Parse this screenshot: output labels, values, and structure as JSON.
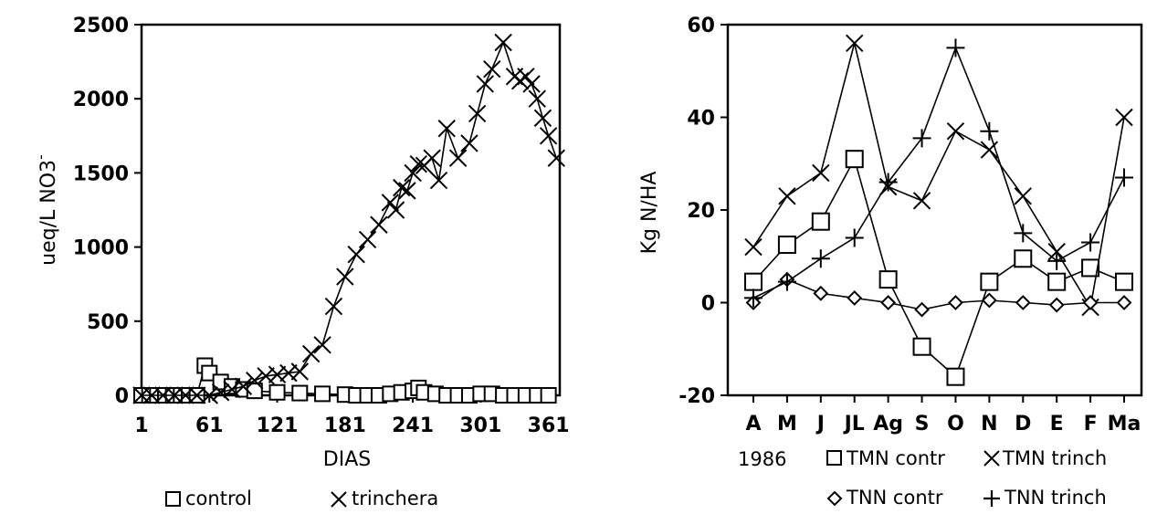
{
  "chart_data": [
    {
      "type": "line",
      "xlabel": "DIAS",
      "ylabel": "ueq/L NO3",
      "ylabel_sup": "-",
      "xlim": [
        1,
        371
      ],
      "ylim": [
        0,
        2500
      ],
      "xticks": [
        "1",
        "61",
        "121",
        "181",
        "241",
        "301",
        "361"
      ],
      "yticks": [
        "0",
        "500",
        "1000",
        "1500",
        "2000",
        "2500"
      ],
      "legend": [
        "control",
        "trinchera"
      ],
      "series": [
        {
          "name": "control",
          "marker": "square",
          "x": [
            1,
            8,
            15,
            22,
            29,
            36,
            43,
            50,
            57,
            61,
            71,
            81,
            91,
            101,
            121,
            141,
            161,
            181,
            191,
            201,
            211,
            221,
            231,
            241,
            246,
            251,
            261,
            271,
            281,
            291,
            301,
            311,
            321,
            331,
            341,
            351,
            361
          ],
          "y": [
            0,
            0,
            0,
            0,
            0,
            0,
            0,
            0,
            200,
            150,
            90,
            60,
            40,
            30,
            20,
            15,
            10,
            5,
            0,
            0,
            0,
            10,
            20,
            30,
            50,
            20,
            10,
            0,
            0,
            0,
            10,
            10,
            0,
            0,
            0,
            0,
            0
          ]
        },
        {
          "name": "trinchera",
          "marker": "x",
          "x": [
            1,
            10,
            20,
            30,
            40,
            50,
            61,
            71,
            81,
            91,
            101,
            111,
            121,
            131,
            141,
            151,
            161,
            171,
            181,
            191,
            201,
            211,
            221,
            226,
            231,
            236,
            241,
            246,
            251,
            258,
            264,
            271,
            281,
            291,
            298,
            305,
            311,
            321,
            331,
            336,
            341,
            346,
            351,
            356,
            361,
            368
          ],
          "y": [
            0,
            0,
            0,
            0,
            0,
            0,
            0,
            20,
            40,
            60,
            100,
            130,
            140,
            150,
            160,
            280,
            340,
            600,
            800,
            950,
            1050,
            1150,
            1300,
            1250,
            1400,
            1380,
            1500,
            1560,
            1550,
            1600,
            1450,
            1800,
            1600,
            1700,
            1900,
            2100,
            2200,
            2380,
            2150,
            2120,
            2150,
            2100,
            2000,
            1870,
            1750,
            1600
          ]
        }
      ]
    },
    {
      "type": "line",
      "xlabel": "",
      "ylabel": "Kg N/HA",
      "ylim": [
        -20,
        60
      ],
      "yticks": [
        "-20",
        "0",
        "20",
        "40",
        "60"
      ],
      "categories": [
        "A",
        "M",
        "J",
        "JL",
        "Ag",
        "S",
        "O",
        "N",
        "D",
        "E",
        "F",
        "Ma"
      ],
      "year_label": "1986",
      "series": [
        {
          "name": "TMN contr",
          "marker": "square",
          "values": [
            4.5,
            12.5,
            17.5,
            31,
            5,
            -9.5,
            -16,
            4.5,
            9.5,
            4.5,
            7.5,
            4.5
          ]
        },
        {
          "name": "TMN trinch",
          "marker": "x",
          "values": [
            12,
            23,
            28,
            56,
            25,
            22,
            37,
            33,
            23,
            11,
            -1,
            40
          ]
        },
        {
          "name": "TNN contr",
          "marker": "diamond",
          "values": [
            0,
            5,
            2,
            1,
            0,
            -1.5,
            0,
            0.5,
            0,
            -0.5,
            0,
            0
          ]
        },
        {
          "name": "TNN trinch",
          "marker": "plus",
          "values": [
            1,
            4.5,
            9.5,
            14,
            26,
            35.5,
            55,
            37,
            15,
            9,
            13,
            27
          ]
        }
      ]
    }
  ]
}
